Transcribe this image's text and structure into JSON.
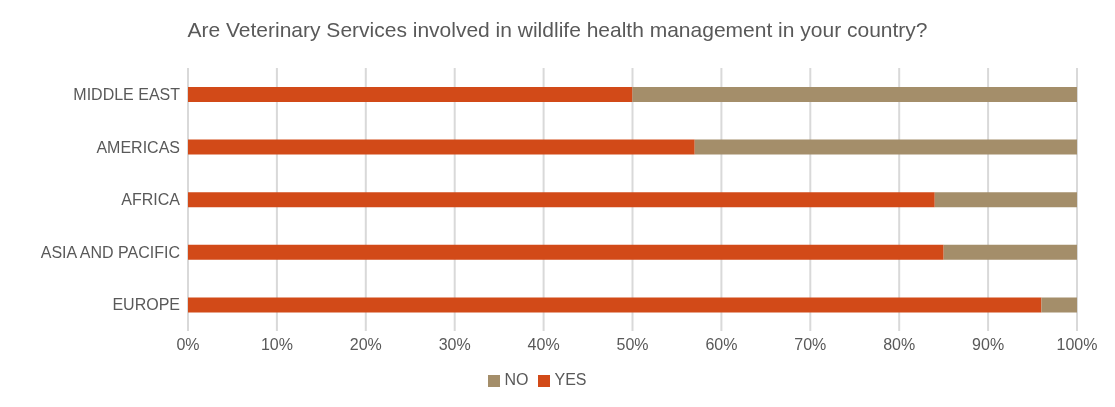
{
  "chart_data": {
    "type": "bar",
    "orientation": "horizontal",
    "stacked": true,
    "title": "Are Veterinary Services involved in wildlife health management in your country?",
    "categories": [
      "MIDDLE EAST",
      "AMERICAS",
      "AFRICA",
      "ASIA AND PACIFIC",
      "EUROPE"
    ],
    "series": [
      {
        "name": "YES",
        "color": "#d24a18",
        "values": [
          50,
          57,
          84,
          85,
          96
        ]
      },
      {
        "name": "NO",
        "color": "#a48e6a",
        "values": [
          50,
          43,
          16,
          15,
          4
        ]
      }
    ],
    "xlim": [
      0,
      100
    ],
    "xticks": [
      {
        "value": 0,
        "label": "0%"
      },
      {
        "value": 10,
        "label": "10%"
      },
      {
        "value": 20,
        "label": "20%"
      },
      {
        "value": 30,
        "label": "30%"
      },
      {
        "value": 40,
        "label": "40%"
      },
      {
        "value": 50,
        "label": "50%"
      },
      {
        "value": 60,
        "label": "60%"
      },
      {
        "value": 70,
        "label": "70%"
      },
      {
        "value": 80,
        "label": "80%"
      },
      {
        "value": 90,
        "label": "90%"
      },
      {
        "value": 100,
        "label": "100%"
      }
    ],
    "grid": "x",
    "legend": "bottom"
  }
}
